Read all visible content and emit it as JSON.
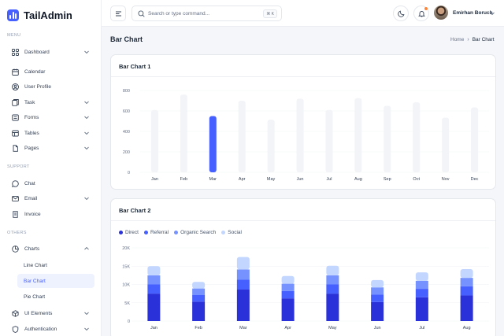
{
  "app": {
    "name": "TailAdmin"
  },
  "sidebar": {
    "sections": {
      "menu": "MENU",
      "support": "SUPPORT",
      "others": "OTHERS"
    },
    "items": [
      {
        "label": "Dashboard",
        "icon": "grid-icon"
      },
      {
        "label": "Calendar",
        "icon": "calendar-icon"
      },
      {
        "label": "User Profile",
        "icon": "user-icon"
      },
      {
        "label": "Task",
        "icon": "task-icon"
      },
      {
        "label": "Forms",
        "icon": "forms-icon"
      },
      {
        "label": "Tables",
        "icon": "tables-icon"
      },
      {
        "label": "Pages",
        "icon": "pages-icon"
      },
      {
        "label": "Chat",
        "icon": "chat-icon"
      },
      {
        "label": "Email",
        "icon": "mail-icon"
      },
      {
        "label": "Invoice",
        "icon": "invoice-icon"
      },
      {
        "label": "Charts",
        "icon": "pie-chart-icon"
      },
      {
        "label": "UI Elements",
        "icon": "box-icon"
      },
      {
        "label": "Authentication",
        "icon": "shield-icon"
      }
    ],
    "chart_sub": [
      {
        "label": "Line Chart"
      },
      {
        "label": "Bar Chart",
        "active": true
      },
      {
        "label": "Pie Chart"
      }
    ]
  },
  "header": {
    "search_placeholder": "Search or type command...",
    "shortcut": "⌘ K",
    "user_name": "Emirhan Boruch"
  },
  "page": {
    "title": "Bar Chart",
    "breadcrumb": {
      "home": "Home",
      "current": "Bar Chart"
    }
  },
  "chart_data": [
    {
      "type": "bar",
      "title": "Bar Chart 1",
      "categories": [
        "Jan",
        "Feb",
        "Mar",
        "Apr",
        "May",
        "Jun",
        "Jul",
        "Aug",
        "Sep",
        "Oct",
        "Nov",
        "Dec"
      ],
      "values": [
        610,
        760,
        550,
        700,
        515,
        720,
        610,
        725,
        650,
        685,
        535,
        635
      ],
      "highlight_index": 2,
      "ylim": [
        0,
        800
      ],
      "yticks": [
        "0",
        "200",
        "400",
        "600",
        "800"
      ],
      "colors": {
        "bar": "#f2f4f7",
        "highlight": "#465fff",
        "grid": "#f0f2f5"
      }
    },
    {
      "type": "bar",
      "stacked": true,
      "title": "Bar Chart 2",
      "categories": [
        "Jan",
        "Feb",
        "Mar",
        "Apr",
        "May",
        "Jun",
        "Jul",
        "Aug"
      ],
      "series": [
        {
          "name": "Direct",
          "color": "#2a31d8",
          "values": [
            7500,
            5300,
            8600,
            6200,
            7500,
            5200,
            6500,
            7000
          ]
        },
        {
          "name": "Referral",
          "color": "#465fff",
          "values": [
            2500,
            1800,
            2700,
            2000,
            2500,
            2000,
            2300,
            2500
          ]
        },
        {
          "name": "Organic Search",
          "color": "#7592ff",
          "values": [
            2500,
            1800,
            2800,
            2000,
            2500,
            2000,
            2200,
            2300
          ]
        },
        {
          "name": "Social",
          "color": "#c2d6ff",
          "values": [
            2500,
            1800,
            3400,
            2100,
            2600,
            2000,
            2300,
            2400
          ]
        }
      ],
      "ylim": [
        0,
        20000
      ],
      "yticks": [
        "0",
        "5K",
        "10K",
        "15K",
        "20K"
      ]
    }
  ]
}
